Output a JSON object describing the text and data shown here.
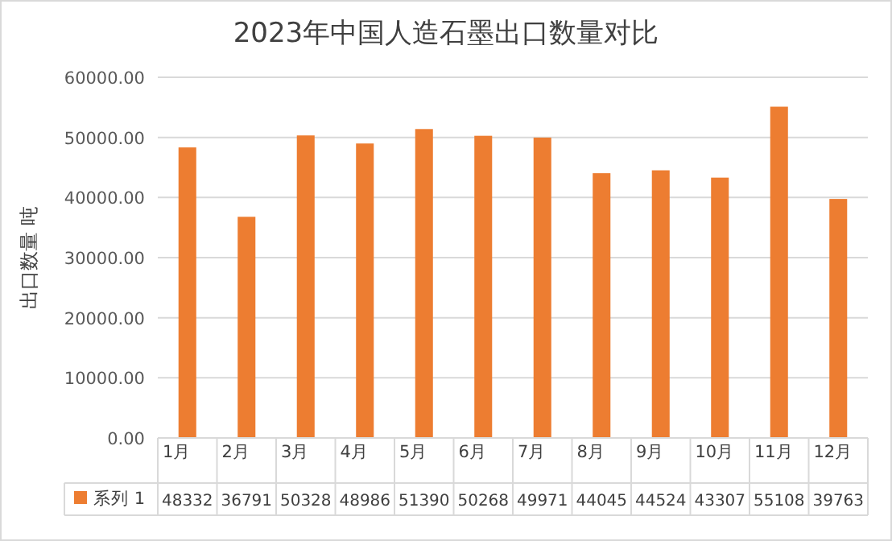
{
  "chart_data": {
    "type": "bar",
    "title": "2023年中国人造石墨出口数量对比",
    "ylabel": "出口数量 吨",
    "categories": [
      "1月",
      "2月",
      "3月",
      "4月",
      "5月",
      "6月",
      "7月",
      "8月",
      "9月",
      "10月",
      "11月",
      "12月"
    ],
    "series": [
      {
        "name": "系列 1",
        "color": "#ed7d31",
        "values": [
          48332,
          36791,
          50328,
          48986,
          51390,
          50268,
          49971,
          44045,
          44524,
          43307,
          55108,
          39763
        ]
      }
    ],
    "ylim": [
      0,
      60000
    ],
    "yticks": [
      {
        "value": 0,
        "label": "0.00"
      },
      {
        "value": 10000,
        "label": "10000.00"
      },
      {
        "value": 20000,
        "label": "20000.00"
      },
      {
        "value": 30000,
        "label": "30000.00"
      },
      {
        "value": 40000,
        "label": "40000.00"
      },
      {
        "value": 50000,
        "label": "50000.00"
      },
      {
        "value": 60000,
        "label": "60000.00"
      }
    ],
    "grid": "y",
    "legend": "bottom",
    "data_labels": true
  }
}
